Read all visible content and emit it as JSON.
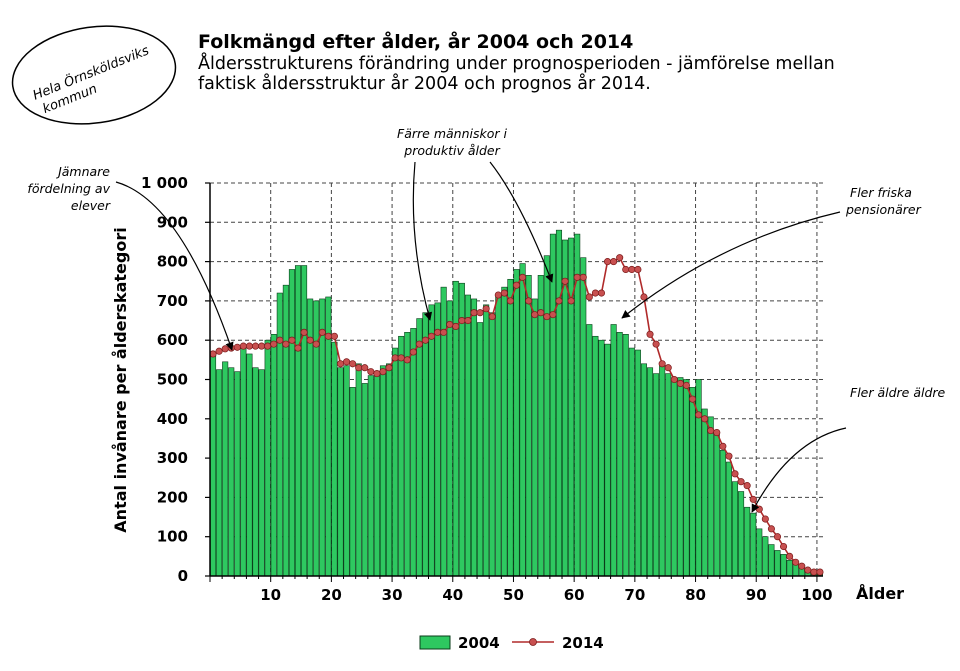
{
  "municipality": {
    "line1": "Hela Örnsköldsviks",
    "line2": "kommun"
  },
  "header": {
    "subtitle_line1": "Åldersstrukturens förändring under prognosperioden - jämförelse mellan",
    "subtitle_line2": "faktisk åldersstruktur år 2004 och prognos år 2014."
  },
  "annotations": {
    "even_line1": "Jämnare",
    "even_line2": "fördelning av",
    "even_line3": "elever",
    "fewer_line1": "Färre människor i",
    "fewer_line2": "produktiv ålder",
    "healthy_line1": "Fler friska",
    "healthy_line2": "pensionärer",
    "elderly": "Fler äldre äldre"
  },
  "colors": {
    "bar_fill": "#2ec860",
    "bar_stroke": "#0a3d1a",
    "line": "#b02a2a",
    "marker": "#c85050"
  },
  "chart_data": {
    "type": "bar",
    "title": "Folkmängd efter ålder, år 2004 och 2014",
    "xlabel": "Ålder",
    "ylabel": "Antal invånare per ålderskategori",
    "x_ticks": [
      10,
      20,
      30,
      40,
      50,
      60,
      70,
      80,
      90,
      100
    ],
    "y_ticks": [
      "0",
      "100",
      "200",
      "300",
      "400",
      "500",
      "600",
      "700",
      "800",
      "900",
      "1 000"
    ],
    "ylim": [
      0,
      1000
    ],
    "xlim": [
      0,
      101
    ],
    "grid": true,
    "legend_position": "bottom",
    "series": [
      {
        "name": "2004",
        "kind": "bar",
        "x": [
          0,
          1,
          2,
          3,
          4,
          5,
          6,
          7,
          8,
          9,
          10,
          11,
          12,
          13,
          14,
          15,
          16,
          17,
          18,
          19,
          20,
          21,
          22,
          23,
          24,
          25,
          26,
          27,
          28,
          29,
          30,
          31,
          32,
          33,
          34,
          35,
          36,
          37,
          38,
          39,
          40,
          41,
          42,
          43,
          44,
          45,
          46,
          47,
          48,
          49,
          50,
          51,
          52,
          53,
          54,
          55,
          56,
          57,
          58,
          59,
          60,
          61,
          62,
          63,
          64,
          65,
          66,
          67,
          68,
          69,
          70,
          71,
          72,
          73,
          74,
          75,
          76,
          77,
          78,
          79,
          80,
          81,
          82,
          83,
          84,
          85,
          86,
          87,
          88,
          89,
          90,
          91,
          92,
          93,
          94,
          95,
          96,
          97,
          98,
          99,
          100
        ],
        "values": [
          565,
          525,
          545,
          530,
          520,
          580,
          565,
          530,
          525,
          600,
          615,
          720,
          740,
          780,
          790,
          790,
          705,
          700,
          705,
          710,
          595,
          530,
          535,
          480,
          540,
          490,
          510,
          515,
          535,
          540,
          580,
          610,
          620,
          630,
          655,
          670,
          690,
          695,
          735,
          700,
          750,
          745,
          715,
          705,
          645,
          690,
          670,
          710,
          735,
          755,
          780,
          795,
          765,
          705,
          765,
          815,
          870,
          880,
          855,
          860,
          870,
          810,
          640,
          610,
          600,
          590,
          640,
          620,
          615,
          580,
          575,
          540,
          530,
          515,
          540,
          515,
          500,
          505,
          500,
          480,
          500,
          425,
          405,
          360,
          320,
          290,
          240,
          215,
          175,
          160,
          120,
          100,
          80,
          65,
          55,
          40,
          30,
          20,
          12,
          8,
          5
        ]
      },
      {
        "name": "2014",
        "kind": "line",
        "x": [
          0,
          1,
          2,
          3,
          4,
          5,
          6,
          7,
          8,
          9,
          10,
          11,
          12,
          13,
          14,
          15,
          16,
          17,
          18,
          19,
          20,
          21,
          22,
          23,
          24,
          25,
          26,
          27,
          28,
          29,
          30,
          31,
          32,
          33,
          34,
          35,
          36,
          37,
          38,
          39,
          40,
          41,
          42,
          43,
          44,
          45,
          46,
          47,
          48,
          49,
          50,
          51,
          52,
          53,
          54,
          55,
          56,
          57,
          58,
          59,
          60,
          61,
          62,
          63,
          64,
          65,
          66,
          67,
          68,
          69,
          70,
          71,
          72,
          73,
          74,
          75,
          76,
          77,
          78,
          79,
          80,
          81,
          82,
          83,
          84,
          85,
          86,
          87,
          88,
          89,
          90,
          91,
          92,
          93,
          94,
          95,
          96,
          97,
          98,
          99,
          100
        ],
        "values": [
          565,
          572,
          578,
          580,
          582,
          585,
          585,
          585,
          585,
          585,
          590,
          600,
          590,
          600,
          580,
          620,
          600,
          590,
          620,
          610,
          610,
          540,
          545,
          540,
          530,
          530,
          520,
          515,
          520,
          530,
          555,
          555,
          550,
          570,
          590,
          600,
          610,
          620,
          620,
          640,
          635,
          650,
          650,
          670,
          670,
          680,
          660,
          715,
          720,
          700,
          740,
          760,
          700,
          665,
          670,
          660,
          665,
          700,
          750,
          700,
          760,
          760,
          710,
          720,
          720,
          800,
          800,
          810,
          780,
          780,
          780,
          710,
          615,
          590,
          540,
          530,
          500,
          490,
          485,
          450,
          410,
          400,
          370,
          365,
          330,
          305,
          260,
          240,
          230,
          195,
          170,
          145,
          120,
          100,
          75,
          50,
          35,
          25,
          15,
          10,
          10
        ]
      }
    ]
  }
}
